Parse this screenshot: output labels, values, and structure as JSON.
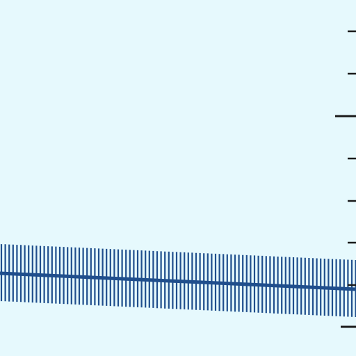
{
  "map": {
    "colors": {
      "background": "#e6f9fd",
      "track": "#1f4e8c",
      "tick_marks": "#1a1a1a"
    },
    "features": [
      {
        "kind": "railway-line",
        "style": "hatched"
      },
      {
        "kind": "scale-tick-marks",
        "orientation": "vertical"
      }
    ]
  }
}
